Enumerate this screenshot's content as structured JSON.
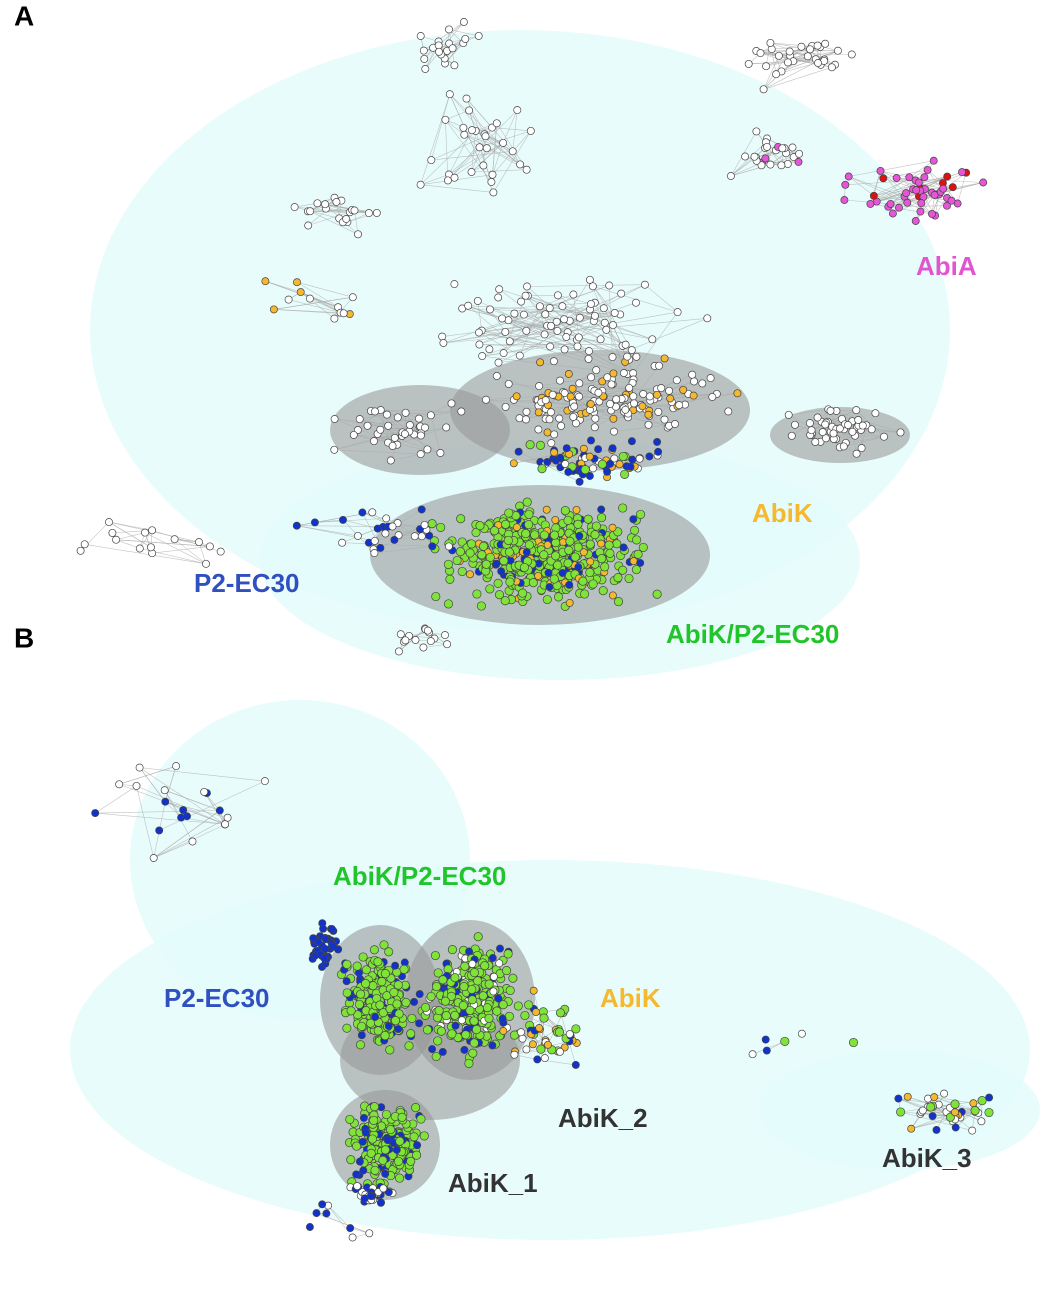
{
  "panels": [
    {
      "label": "A",
      "clusters": [
        {
          "label": "AbiA"
        },
        {
          "label": "AbiK"
        },
        {
          "label": "P2-EC30"
        },
        {
          "label": "AbiK/P2-EC30"
        }
      ]
    },
    {
      "label": "B",
      "clusters": [
        {
          "label": "AbiK/P2-EC30"
        },
        {
          "label": "P2-EC30"
        },
        {
          "label": "AbiK"
        },
        {
          "label": "AbiK_2"
        },
        {
          "label": "AbiK_1"
        },
        {
          "label": "AbiK_3"
        }
      ]
    }
  ]
}
